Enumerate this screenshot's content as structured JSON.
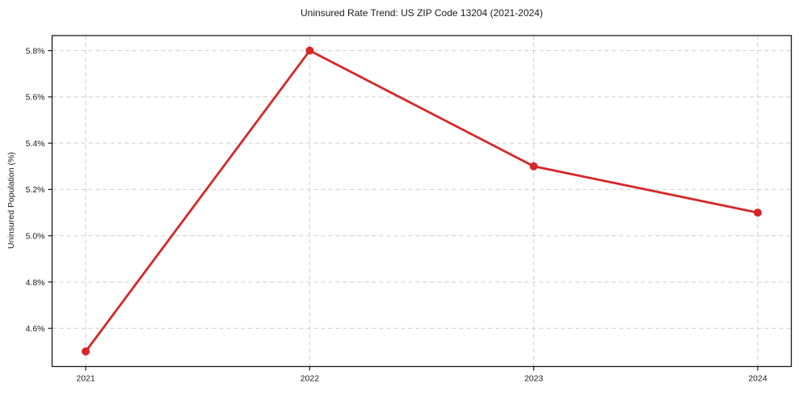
{
  "chart_data": {
    "type": "line",
    "title": "Uninsured Rate Trend: US ZIP Code 13204 (2021-2024)",
    "xlabel": "",
    "ylabel": "Uninsured Population (%)",
    "x": [
      2021,
      2022,
      2023,
      2024
    ],
    "values": [
      4.5,
      5.8,
      5.3,
      5.1
    ],
    "x_tick_labels": [
      "2021",
      "2022",
      "2023",
      "2024"
    ],
    "y_tick_values": [
      4.6,
      4.8,
      5.0,
      5.2,
      5.4,
      5.6,
      5.8
    ],
    "y_tick_labels": [
      "4.6%",
      "4.8%",
      "5.0%",
      "5.2%",
      "5.4%",
      "5.6%",
      "5.8%"
    ],
    "xlim": [
      2020.85,
      2024.15
    ],
    "ylim": [
      4.435,
      5.865
    ],
    "grid": true,
    "grid_style": "dashed",
    "legend": "none",
    "line_color": "#d62728",
    "marker_color": "#d62728",
    "grid_color": "#cccccc",
    "spine_color": "#1a1a1a"
  }
}
